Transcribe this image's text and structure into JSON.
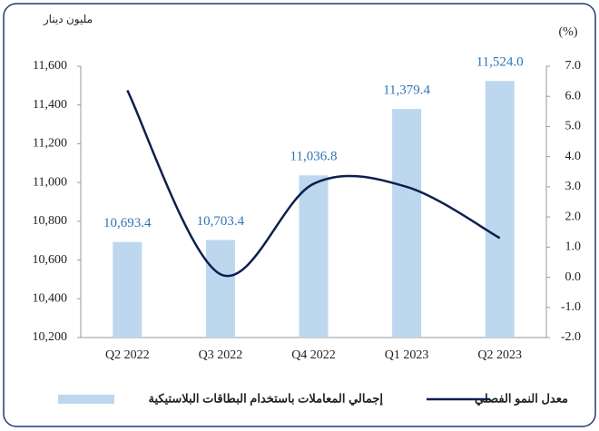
{
  "chart_data": {
    "type": "bar_line",
    "y_label": "مليون دينار",
    "y2_label": "(%)",
    "categories": [
      "Q2 2022",
      "Q3 2022",
      "Q4 2022",
      "Q1 2023",
      "Q2 2023"
    ],
    "series": [
      {
        "name": "إجمالي المعاملات باستخدام البطاقات البلاستيكية",
        "color": "#bdd7ee",
        "type": "bar",
        "values": [
          10693.4,
          10703.4,
          11036.8,
          11379.4,
          11524.0
        ],
        "value_labels": [
          "10,693.4",
          "10,703.4",
          "11,036.8",
          "11,379.4",
          "11,524.0"
        ]
      },
      {
        "name": "معدل النمو الفصلي",
        "color": "#0d1f4f",
        "type": "line",
        "axis": "y2",
        "values": [
          6.2,
          0.1,
          3.1,
          3.0,
          1.3
        ]
      }
    ],
    "ylim": [
      10200,
      11600
    ],
    "yticks": [
      {
        "value": 10200,
        "label": "10,200"
      },
      {
        "value": 10400,
        "label": "10,400"
      },
      {
        "value": 10600,
        "label": "10,600"
      },
      {
        "value": 10800,
        "label": "10,800"
      },
      {
        "value": 11000,
        "label": "11,000"
      },
      {
        "value": 11200,
        "label": "11,200"
      },
      {
        "value": 11400,
        "label": "11,400"
      },
      {
        "value": 11600,
        "label": "11,600"
      }
    ],
    "y2lim": [
      -2,
      7
    ],
    "y2ticks": [
      {
        "value": -2,
        "label": "-2.0"
      },
      {
        "value": -1,
        "label": "-1.0"
      },
      {
        "value": 0,
        "label": "0.0"
      },
      {
        "value": 1,
        "label": "1.0"
      },
      {
        "value": 2,
        "label": "2.0"
      },
      {
        "value": 3,
        "label": "3.0"
      },
      {
        "value": 4,
        "label": "4.0"
      },
      {
        "value": 5,
        "label": "5.0"
      },
      {
        "value": 6,
        "label": "6.0"
      },
      {
        "value": 7,
        "label": "7.0"
      }
    ],
    "grid": false
  }
}
